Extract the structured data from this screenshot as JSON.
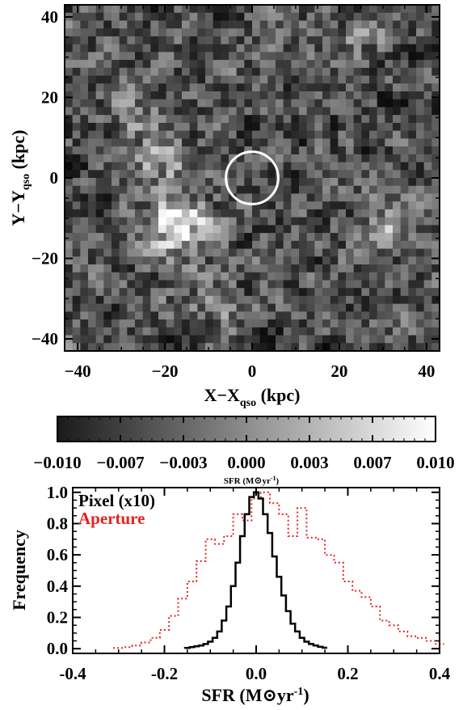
{
  "chart_data": [
    {
      "type": "heatmap",
      "xlabel": "X−X",
      "xlabel_sub": "qso",
      "xlabel_unit": " (kpc)",
      "ylabel": "Y−Y",
      "ylabel_sub": "qso",
      "ylabel_unit": " (kpc)",
      "xlim": [
        -43,
        43
      ],
      "ylim": [
        -43,
        43
      ],
      "xticks": [
        -40,
        -20,
        0,
        20,
        40
      ],
      "yticks": [
        -40,
        -20,
        0,
        20,
        40
      ],
      "colormap": "grayscale",
      "aperture_circle": {
        "x": 0,
        "y": 0,
        "radius": 6,
        "color": "#ffffff"
      },
      "bright_features": [
        {
          "x": -17,
          "y": -12,
          "sigma": 5,
          "level": 0.55
        },
        {
          "x": -21,
          "y": 5,
          "sigma": 4,
          "level": 0.35
        },
        {
          "x": -27,
          "y": 17,
          "sigma": 4,
          "level": 0.2
        },
        {
          "x": 30,
          "y": -12,
          "sigma": 3,
          "level": 0.3
        },
        {
          "x": 25,
          "y": 35,
          "sigma": 4,
          "level": 0.15
        },
        {
          "x": -10,
          "y": -34,
          "sigma": 5,
          "level": 0.15
        }
      ]
    },
    {
      "type": "colorbar",
      "range": [
        -0.01,
        0.01
      ],
      "tick_labels": [
        "−0.010",
        "−0.007",
        "−0.003",
        "0.000",
        "0.003",
        "0.007",
        "0.010"
      ],
      "label": "SFR (M",
      "label_unit": "yr",
      "label_exp": "-1",
      "label_close": ")"
    },
    {
      "type": "line",
      "step": true,
      "xlabel": "SFR (M",
      "xlabel_unit": "yr",
      "xlabel_exp": "-1",
      "xlabel_close": ")",
      "ylabel": "Frequency",
      "xlim": [
        -0.4,
        0.4
      ],
      "ylim": [
        -0.03,
        1.03
      ],
      "xticks": [
        -0.4,
        -0.2,
        0.0,
        0.2,
        0.4
      ],
      "xtick_labels": [
        "-0.4",
        "-0.2",
        "0.0",
        "0.2",
        "0.4"
      ],
      "yticks": [
        0.0,
        0.2,
        0.4,
        0.6,
        0.8,
        1.0
      ],
      "ytick_labels": [
        "0.0",
        "0.2",
        "0.4",
        "0.6",
        "0.8",
        "1.0"
      ],
      "legend_position": "top-left",
      "series": [
        {
          "name": "Pixel (x10)",
          "color": "#000000",
          "dash": "solid",
          "x": [
            -0.15,
            -0.14,
            -0.13,
            -0.12,
            -0.11,
            -0.1,
            -0.09,
            -0.08,
            -0.07,
            -0.06,
            -0.05,
            -0.04,
            -0.03,
            -0.02,
            -0.01,
            0.0,
            0.01,
            0.02,
            0.03,
            0.04,
            0.05,
            0.06,
            0.07,
            0.08,
            0.09,
            0.1,
            0.11,
            0.12,
            0.13,
            0.14,
            0.15
          ],
          "y": [
            0.005,
            0.01,
            0.015,
            0.02,
            0.03,
            0.045,
            0.07,
            0.11,
            0.18,
            0.27,
            0.4,
            0.55,
            0.72,
            0.86,
            0.97,
            1.0,
            0.96,
            0.86,
            0.74,
            0.59,
            0.46,
            0.34,
            0.24,
            0.16,
            0.11,
            0.07,
            0.045,
            0.03,
            0.02,
            0.012,
            0.006
          ]
        },
        {
          "name": "Aperture",
          "color": "#e8231f",
          "dash": "dotted",
          "x": [
            -0.3,
            -0.28,
            -0.26,
            -0.24,
            -0.22,
            -0.2,
            -0.18,
            -0.16,
            -0.14,
            -0.12,
            -0.1,
            -0.08,
            -0.06,
            -0.04,
            -0.02,
            0.0,
            0.02,
            0.04,
            0.06,
            0.08,
            0.1,
            0.12,
            0.14,
            0.16,
            0.18,
            0.2,
            0.22,
            0.24,
            0.26,
            0.28,
            0.3,
            0.32,
            0.34,
            0.36,
            0.38,
            0.4
          ],
          "y": [
            0.005,
            0.01,
            0.02,
            0.04,
            0.07,
            0.12,
            0.21,
            0.32,
            0.43,
            0.56,
            0.7,
            0.67,
            0.72,
            0.86,
            0.82,
            0.96,
            1.0,
            0.93,
            0.86,
            0.72,
            0.9,
            0.71,
            0.7,
            0.6,
            0.55,
            0.43,
            0.37,
            0.33,
            0.27,
            0.18,
            0.15,
            0.11,
            0.08,
            0.07,
            0.05,
            0.03
          ]
        }
      ]
    }
  ]
}
